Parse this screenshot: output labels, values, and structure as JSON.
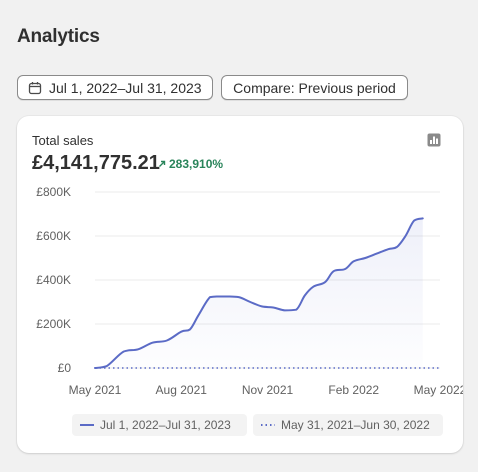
{
  "page": {
    "title": "Analytics"
  },
  "toolbar": {
    "date_range_label": "Jul 1, 2022–Jul 31, 2023",
    "compare_label": "Compare: Previous period"
  },
  "card": {
    "metric_label": "Total sales",
    "metric_value": "£4,141,775.21",
    "metric_change": "283,910%",
    "accent_color": "#5b6bc6",
    "positive_color": "#29845a"
  },
  "chart_data": {
    "type": "line",
    "ylim": [
      0,
      800000
    ],
    "y_ticks": [
      {
        "value": 0,
        "label": "£0"
      },
      {
        "value": 200000,
        "label": "£200K"
      },
      {
        "value": 400000,
        "label": "£400K"
      },
      {
        "value": 600000,
        "label": "£600K"
      },
      {
        "value": 800000,
        "label": "£800K"
      }
    ],
    "x_ticks": [
      "May 2021",
      "Aug 2021",
      "Nov 2021",
      "Feb 2022",
      "May 2022"
    ],
    "grid": true,
    "series": [
      {
        "name": "Jul 1, 2022–Jul 31, 2023",
        "style": "solid",
        "x": [
          0,
          0.4,
          1,
          1.5,
          2,
          2.5,
          3,
          3.3,
          3.6,
          4,
          4.3,
          4.6,
          5,
          5.4,
          5.8,
          6.2,
          6.6,
          7,
          7.3,
          7.6,
          8,
          8.3,
          8.7,
          9,
          9.4,
          9.8,
          10.2,
          10.5,
          10.8,
          11.1,
          11.4
        ],
        "values": [
          0,
          8000,
          75000,
          85000,
          115000,
          125000,
          165000,
          175000,
          240000,
          322000,
          325000,
          325000,
          322000,
          300000,
          280000,
          275000,
          262000,
          265000,
          330000,
          370000,
          390000,
          440000,
          450000,
          485000,
          500000,
          520000,
          540000,
          550000,
          600000,
          670000,
          680000
        ]
      },
      {
        "name": "May 31, 2021–Jun 30, 2022",
        "style": "dotted",
        "x": [
          0,
          11.4
        ],
        "values": [
          0,
          0
        ]
      }
    ]
  }
}
